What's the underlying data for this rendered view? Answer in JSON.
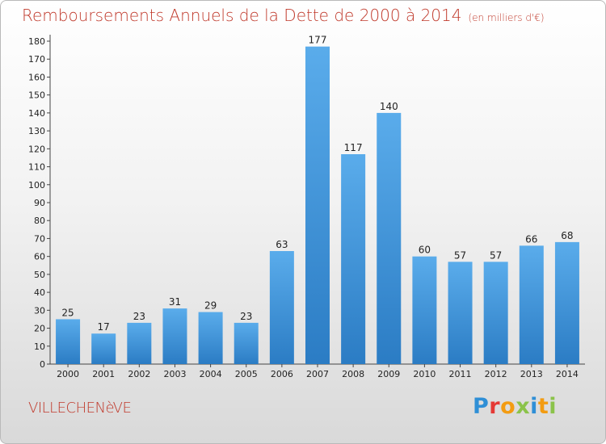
{
  "header": {
    "title": "Remboursements Annuels de la Dette de 2000 à 2014",
    "unit": "(en milliers d'€)"
  },
  "footer": {
    "commune": "VILLECHENèVE",
    "logo": "Proxiti",
    "logo_colors": [
      "#2f8fd6",
      "#e53935",
      "#f39c12",
      "#8bc34a",
      "#2f8fd6",
      "#f39c12",
      "#8bc34a"
    ]
  },
  "chart_data": {
    "type": "bar",
    "title": "Remboursements Annuels de la Dette de 2000 à 2014",
    "xlabel": "",
    "ylabel": "",
    "categories": [
      "2000",
      "2001",
      "2002",
      "2003",
      "2004",
      "2005",
      "2006",
      "2007",
      "2008",
      "2009",
      "2010",
      "2011",
      "2012",
      "2013",
      "2014"
    ],
    "values": [
      25,
      17,
      23,
      31,
      29,
      23,
      63,
      177,
      117,
      140,
      60,
      57,
      57,
      66,
      68
    ],
    "ylim": [
      0,
      180
    ],
    "yticks": [
      0,
      10,
      20,
      30,
      40,
      50,
      60,
      70,
      80,
      90,
      100,
      110,
      120,
      130,
      140,
      150,
      160,
      170,
      180
    ],
    "grid": false,
    "legend": "none",
    "bar_color": "#3d8fd6"
  }
}
